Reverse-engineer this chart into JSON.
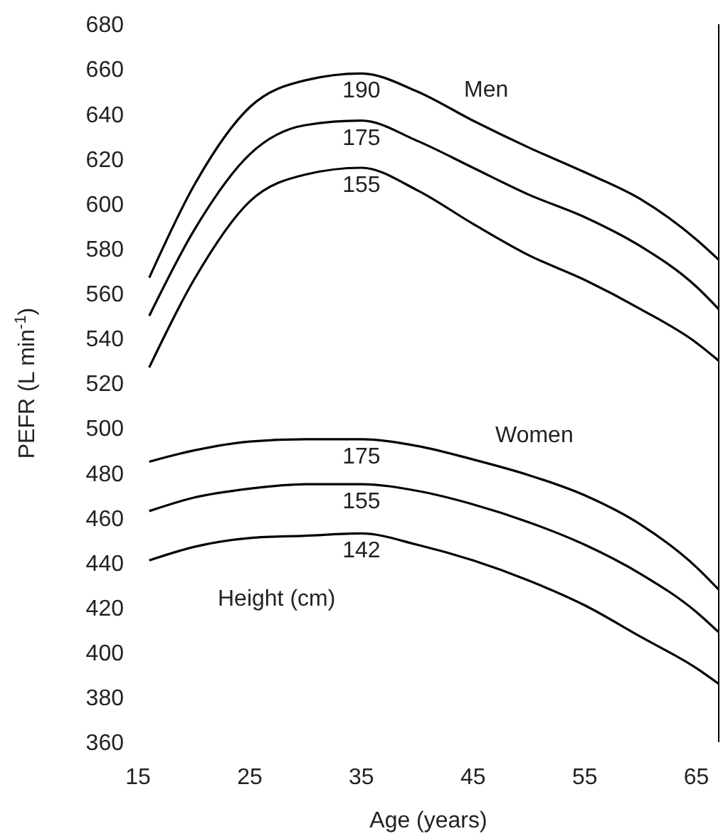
{
  "chart_data": {
    "type": "line",
    "xlabel": "Age (years)",
    "ylabel": "PEFR (L min$^{-1}$)",
    "x": [
      16,
      20,
      25,
      30,
      35,
      40,
      45,
      50,
      55,
      60,
      65,
      67
    ],
    "series": [
      {
        "name": "190",
        "color": "#000000",
        "values": [
          567,
          608,
          643,
          655,
          658,
          650,
          637,
          625,
          614,
          602,
          584,
          575
        ]
      },
      {
        "name": "175",
        "color": "#000000",
        "values": [
          550,
          588,
          622,
          635,
          637,
          628,
          616,
          604,
          594,
          581,
          563,
          553
        ]
      },
      {
        "name": "155",
        "color": "#000000",
        "values": [
          527,
          566,
          601,
          613,
          616,
          606,
          591,
          577,
          566,
          553,
          538,
          530
        ]
      },
      {
        "name": "175",
        "color": "#000000",
        "values": [
          485,
          490,
          494,
          495,
          495,
          492,
          486,
          479,
          470,
          457,
          438,
          428
        ]
      },
      {
        "name": "155",
        "color": "#000000",
        "values": [
          463,
          469,
          473,
          475,
          475,
          472,
          466,
          458,
          448,
          435,
          418,
          409
        ]
      },
      {
        "name": "142",
        "color": "#000000",
        "values": [
          441,
          447,
          451,
          452,
          453,
          448,
          441,
          432,
          421,
          407,
          393,
          386
        ]
      }
    ],
    "annotations": [
      "Men",
      "Women",
      "Height (cm)"
    ],
    "xlim": [
      15,
      67
    ],
    "xticks": [
      15,
      25,
      35,
      45,
      55,
      65
    ],
    "ylim": [
      360,
      680
    ],
    "yticks": [
      360,
      380,
      400,
      420,
      440,
      460,
      480,
      500,
      520,
      540,
      560,
      580,
      600,
      620,
      640,
      660,
      680
    ],
    "grid": false,
    "legend": false,
    "marker": "none",
    "line_style": "solid"
  }
}
